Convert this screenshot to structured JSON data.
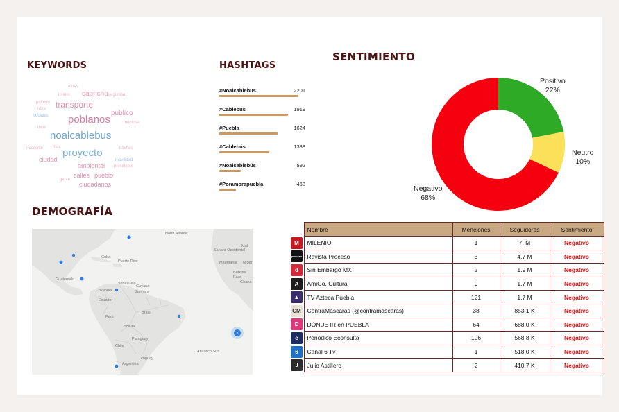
{
  "headings": {
    "keywords": "KEYWORDS",
    "hashtags": "HASHTAGS",
    "sentimiento": "SENTIMIENTO",
    "demografia": "DEMOGRAFÍA"
  },
  "keywords": [
    {
      "word": "ofrtas",
      "color": "#e7b3c6"
    },
    {
      "word": "capricho",
      "color": "#e29ab4"
    },
    {
      "word": "dinero",
      "color": "#e7b3c6"
    },
    {
      "word": "seguridad",
      "color": "#e7b3c6"
    },
    {
      "word": "palomo",
      "color": "#e7b3c6"
    },
    {
      "word": "transporte",
      "color": "#e48fae"
    },
    {
      "word": "obra",
      "color": "#e7b3c6"
    },
    {
      "word": "público",
      "color": "#e48fae"
    },
    {
      "word": "sociales",
      "color": "#9fc3e6"
    },
    {
      "word": "poblanos",
      "color": "#e07aa0"
    },
    {
      "word": "dicie",
      "color": "#e7b3c6"
    },
    {
      "word": "noalcablebus",
      "color": "#6ea6d8"
    },
    {
      "word": "necesito",
      "color": "#e7b3c6"
    },
    {
      "word": "mas",
      "color": "#e7b3c6"
    },
    {
      "word": "proyecto",
      "color": "#79aedc"
    },
    {
      "word": "baches",
      "color": "#e7b3c6"
    },
    {
      "word": "ciudad",
      "color": "#e48fae"
    },
    {
      "word": "movilidad",
      "color": "#9fc3e6"
    },
    {
      "word": "ambiental",
      "color": "#e48fae"
    },
    {
      "word": "presidente",
      "color": "#e7b3c6"
    },
    {
      "word": "calles",
      "color": "#e48fae"
    },
    {
      "word": "pueblo",
      "color": "#e48fae"
    },
    {
      "word": "gente",
      "color": "#e7b3c6"
    },
    {
      "word": "ciudadanos",
      "color": "#e48fae"
    },
    {
      "word": "mucrosa",
      "color": "#e7b3c6"
    }
  ],
  "hashtags": [
    {
      "tag": "#Noalcablebus",
      "count": 2201
    },
    {
      "tag": "#Cablebus",
      "count": 1919
    },
    {
      "tag": "#Puebla",
      "count": 1624
    },
    {
      "tag": "#Cablebús",
      "count": 1388
    },
    {
      "tag": "#Noalcablebús",
      "count": 592
    },
    {
      "tag": "#Poramorapuebla",
      "count": 468
    }
  ],
  "chart_data": {
    "type": "pie",
    "title": "SENTIMIENTO",
    "categories": [
      "Positivo",
      "Neutro",
      "Negativo"
    ],
    "values": [
      22,
      10,
      68
    ],
    "labels": {
      "Positivo": "22%",
      "Neutro": "10%",
      "Negativo": "68%"
    },
    "colors": {
      "Positivo": "#2eaa27",
      "Neutro": "#fbe05a",
      "Negativo": "#f5000f"
    }
  },
  "map": {
    "labels": [
      "North Atlantic",
      "Sahara Occidental",
      "Mali",
      "Cuba",
      "Puerto Rico",
      "Mauritania",
      "Níger",
      "Burkina Faso",
      "Guatemala",
      "Colombia",
      "Venezuela",
      "Guyana",
      "Surinam",
      "Ghana",
      "Ecuador",
      "Perú",
      "Brasil",
      "Bolivia",
      "Paraguay",
      "Chile",
      "Uruguay",
      "Argentina",
      "Atlántico Sur"
    ],
    "cluster_count": "3"
  },
  "table": {
    "headers": [
      "Nombre",
      "Menciones",
      "Seguidores",
      "Sentimiento"
    ],
    "rows": [
      {
        "name": "MILENIO",
        "mentions": "1",
        "followers": "7. M",
        "sentiment": "Negativo",
        "logo": "M",
        "color": "#c8171e"
      },
      {
        "name": "Revista Proceso",
        "mentions": "3",
        "followers": "4.7 M",
        "sentiment": "Negativo",
        "logo": "proceso",
        "color": "#111111"
      },
      {
        "name": "Sin Embargo MX",
        "mentions": "2",
        "followers": "1.9 M",
        "sentiment": "Negativo",
        "logo": "d",
        "color": "#d42a3a"
      },
      {
        "name": "AmiGo. Cultura",
        "mentions": "9",
        "followers": "1.7 M",
        "sentiment": "Negativo",
        "logo": "A",
        "color": "#1d1d1d"
      },
      {
        "name": "TV Azteca Puebla",
        "mentions": "121",
        "followers": "1.7 M",
        "sentiment": "Negativo",
        "logo": "▲",
        "color": "#3b2d6b"
      },
      {
        "name": "ContraMascaras (@contramascaras)",
        "mentions": "38",
        "followers": "853.1 K",
        "sentiment": "Negativo",
        "logo": "CM",
        "color": "#e9e1d6"
      },
      {
        "name": "DÓNDE IR en PUEBLA",
        "mentions": "64",
        "followers": "688.0 K",
        "sentiment": "Negativo",
        "logo": "D",
        "color": "#e0367a"
      },
      {
        "name": "Periódico Econsulta",
        "mentions": "106",
        "followers": "568.8 K",
        "sentiment": "Negativo",
        "logo": "e",
        "color": "#1c2c63"
      },
      {
        "name": "Canal 6 Tv",
        "mentions": "1",
        "followers": "518.0 K",
        "sentiment": "Negativo",
        "logo": "6",
        "color": "#1f6fc4"
      },
      {
        "name": "Julio Astillero",
        "mentions": "2",
        "followers": "410.7 K",
        "sentiment": "Negativo",
        "logo": "J",
        "color": "#2b2b2b"
      }
    ]
  }
}
